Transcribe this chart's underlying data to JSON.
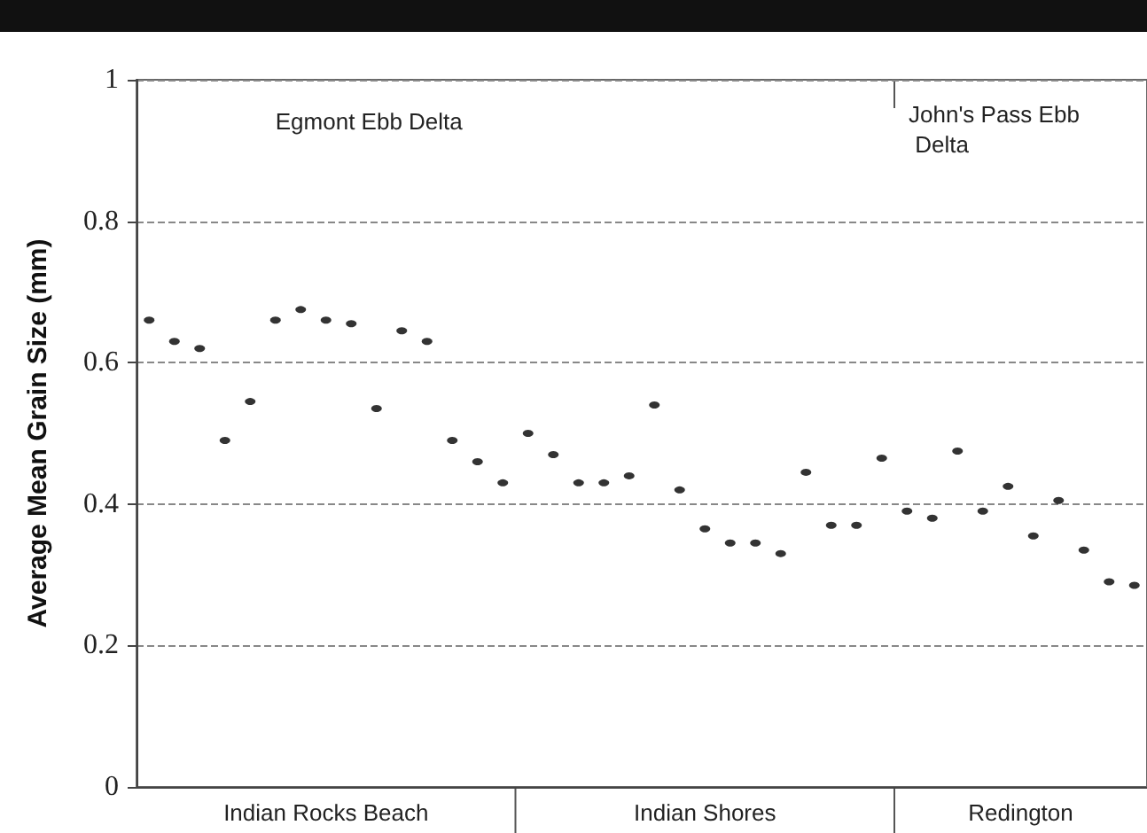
{
  "chart_data": {
    "type": "scatter",
    "ylabel": "Average Mean Grain Size (mm)",
    "categories": [
      null,
      null,
      null,
      null,
      null,
      null,
      null,
      null,
      null,
      null,
      null,
      null,
      null,
      null,
      null,
      null,
      null,
      null,
      null,
      null,
      null,
      null,
      null,
      null,
      null,
      null,
      null,
      null,
      null,
      null,
      null,
      null,
      null,
      null,
      null,
      null,
      null,
      null,
      null,
      null
    ],
    "values": [
      0.66,
      0.63,
      0.62,
      0.49,
      0.545,
      0.66,
      0.675,
      0.66,
      0.655,
      0.535,
      0.645,
      0.63,
      0.49,
      0.46,
      0.43,
      0.5,
      0.47,
      0.43,
      0.43,
      0.44,
      0.54,
      0.42,
      0.365,
      0.345,
      0.345,
      0.33,
      0.445,
      0.37,
      0.37,
      0.465,
      0.39,
      0.38,
      0.475,
      0.39,
      0.425,
      0.355,
      0.405,
      0.335,
      0.29,
      0.285
    ],
    "color": "#000000",
    "ylim": [
      0,
      1
    ],
    "yticks": [
      0,
      0.2,
      0.4,
      0.6,
      0.8,
      1
    ],
    "grid": "y",
    "marker": "circle",
    "annotations": [
      "Egmont Ebb Delta",
      "John's Pass Ebb Delta",
      "Indian Rocks Beach",
      "Indian Shores",
      "Redington"
    ]
  }
}
